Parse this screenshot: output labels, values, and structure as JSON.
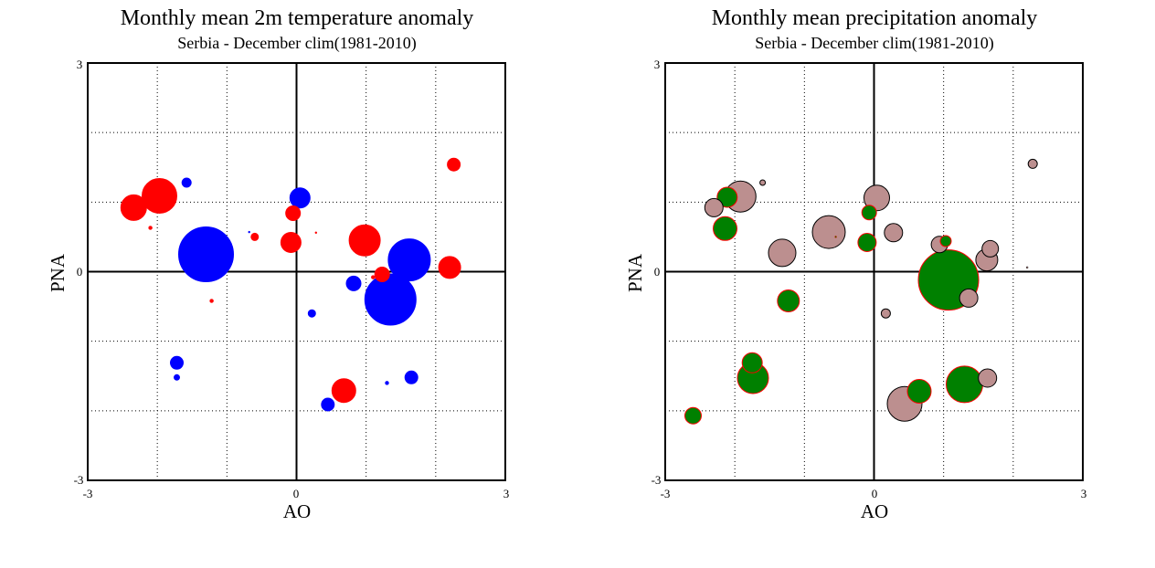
{
  "chart_data": [
    {
      "type": "scatter",
      "title": "Monthly mean 2m temperature anomaly",
      "subtitle": "Serbia - December  clim(1981-2010)",
      "xlabel": "AO",
      "ylabel": "PNA",
      "xlim": [
        -3,
        3
      ],
      "ylim": [
        -3,
        3
      ],
      "grid": true,
      "x_ticks": [
        "-3",
        "0",
        "3"
      ],
      "y_ticks": [
        "-3",
        "0",
        "3"
      ],
      "colors": {
        "positive": "#ff0000",
        "negative": "#0000ff"
      },
      "points": [
        {
          "x": -2.34,
          "y": 0.92,
          "size": 14,
          "sign": "positive"
        },
        {
          "x": -1.97,
          "y": 1.09,
          "size": 19,
          "sign": "positive"
        },
        {
          "x": -2.1,
          "y": 0.63,
          "size": 2,
          "sign": "positive"
        },
        {
          "x": -1.58,
          "y": 1.28,
          "size": 5,
          "sign": "negative"
        },
        {
          "x": -1.3,
          "y": 0.25,
          "size": 30,
          "sign": "negative"
        },
        {
          "x": -1.22,
          "y": -0.42,
          "size": 2,
          "sign": "positive"
        },
        {
          "x": -1.72,
          "y": -1.31,
          "size": 7,
          "sign": "negative"
        },
        {
          "x": -1.72,
          "y": -1.52,
          "size": 3,
          "sign": "negative"
        },
        {
          "x": -0.6,
          "y": 0.5,
          "size": 4,
          "sign": "positive"
        },
        {
          "x": -0.68,
          "y": 0.57,
          "size": 1,
          "sign": "negative"
        },
        {
          "x": -0.08,
          "y": 0.42,
          "size": 11,
          "sign": "positive"
        },
        {
          "x": -0.05,
          "y": 0.84,
          "size": 8,
          "sign": "positive"
        },
        {
          "x": 0.05,
          "y": 1.06,
          "size": 11,
          "sign": "negative"
        },
        {
          "x": 0.28,
          "y": 0.56,
          "size": 1,
          "sign": "positive"
        },
        {
          "x": 0.22,
          "y": -0.6,
          "size": 4,
          "sign": "negative"
        },
        {
          "x": 0.82,
          "y": -0.17,
          "size": 8,
          "sign": "negative"
        },
        {
          "x": 0.98,
          "y": 0.45,
          "size": 17,
          "sign": "positive"
        },
        {
          "x": 1.1,
          "y": -0.08,
          "size": 2,
          "sign": "positive"
        },
        {
          "x": 1.23,
          "y": -0.04,
          "size": 8,
          "sign": "positive"
        },
        {
          "x": 1.35,
          "y": -0.4,
          "size": 28,
          "sign": "negative"
        },
        {
          "x": 1.62,
          "y": 0.17,
          "size": 23,
          "sign": "negative"
        },
        {
          "x": 0.45,
          "y": -1.91,
          "size": 7,
          "sign": "negative"
        },
        {
          "x": 0.68,
          "y": -1.71,
          "size": 13,
          "sign": "positive"
        },
        {
          "x": 1.3,
          "y": -1.6,
          "size": 2,
          "sign": "negative"
        },
        {
          "x": 1.65,
          "y": -1.52,
          "size": 7,
          "sign": "negative"
        },
        {
          "x": 2.2,
          "y": 0.06,
          "size": 12,
          "sign": "positive"
        },
        {
          "x": 2.26,
          "y": 1.54,
          "size": 7,
          "sign": "positive"
        }
      ]
    },
    {
      "type": "scatter",
      "title": "Monthly mean precipitation anomaly",
      "subtitle": "Serbia - December  clim(1981-2010)",
      "xlabel": "AO",
      "ylabel": "PNA",
      "xlim": [
        -3,
        3
      ],
      "ylim": [
        -3,
        3
      ],
      "grid": true,
      "x_ticks": [
        "-3",
        "0",
        "3"
      ],
      "y_ticks": [
        "-3",
        "0",
        "3"
      ],
      "colors": {
        "positive": "#008000",
        "negative": "#bc8f8f"
      },
      "points": [
        {
          "x": -2.3,
          "y": 0.92,
          "size": 10,
          "sign": "negative"
        },
        {
          "x": -1.92,
          "y": 1.08,
          "size": 17,
          "sign": "negative"
        },
        {
          "x": -2.11,
          "y": 1.07,
          "size": 11,
          "sign": "positive"
        },
        {
          "x": -2.14,
          "y": 0.62,
          "size": 13,
          "sign": "positive"
        },
        {
          "x": -1.6,
          "y": 1.28,
          "size": 3,
          "sign": "negative"
        },
        {
          "x": -1.32,
          "y": 0.27,
          "size": 15,
          "sign": "negative"
        },
        {
          "x": -1.23,
          "y": -0.42,
          "size": 12,
          "sign": "positive"
        },
        {
          "x": -1.75,
          "y": -1.31,
          "size": 11,
          "sign": "positive"
        },
        {
          "x": -1.74,
          "y": -1.53,
          "size": 17,
          "sign": "positive"
        },
        {
          "x": -2.6,
          "y": -2.07,
          "size": 9,
          "sign": "positive"
        },
        {
          "x": -0.65,
          "y": 0.57,
          "size": 18,
          "sign": "negative"
        },
        {
          "x": -0.55,
          "y": 0.5,
          "size": 1,
          "sign": "positive"
        },
        {
          "x": -0.1,
          "y": 0.42,
          "size": 10,
          "sign": "positive"
        },
        {
          "x": -0.07,
          "y": 0.85,
          "size": 8,
          "sign": "positive"
        },
        {
          "x": 0.04,
          "y": 1.06,
          "size": 14,
          "sign": "negative"
        },
        {
          "x": 0.28,
          "y": 0.56,
          "size": 10,
          "sign": "negative"
        },
        {
          "x": 0.17,
          "y": -0.6,
          "size": 5,
          "sign": "negative"
        },
        {
          "x": 0.94,
          "y": 0.39,
          "size": 9,
          "sign": "negative"
        },
        {
          "x": 1.03,
          "y": 0.44,
          "size": 6,
          "sign": "positive"
        },
        {
          "x": 1.36,
          "y": -0.38,
          "size": 10,
          "sign": "negative"
        },
        {
          "x": 1.07,
          "y": -0.12,
          "size": 33,
          "sign": "positive"
        },
        {
          "x": 1.62,
          "y": 0.17,
          "size": 12,
          "sign": "negative"
        },
        {
          "x": 1.67,
          "y": 0.33,
          "size": 9,
          "sign": "negative"
        },
        {
          "x": 0.44,
          "y": -1.9,
          "size": 19,
          "sign": "negative"
        },
        {
          "x": 0.65,
          "y": -1.72,
          "size": 13,
          "sign": "positive"
        },
        {
          "x": 1.3,
          "y": -1.62,
          "size": 20,
          "sign": "positive"
        },
        {
          "x": 1.63,
          "y": -1.53,
          "size": 10,
          "sign": "negative"
        },
        {
          "x": 2.2,
          "y": 0.06,
          "size": 1,
          "sign": "negative"
        },
        {
          "x": 2.28,
          "y": 1.55,
          "size": 5,
          "sign": "negative"
        }
      ]
    }
  ]
}
